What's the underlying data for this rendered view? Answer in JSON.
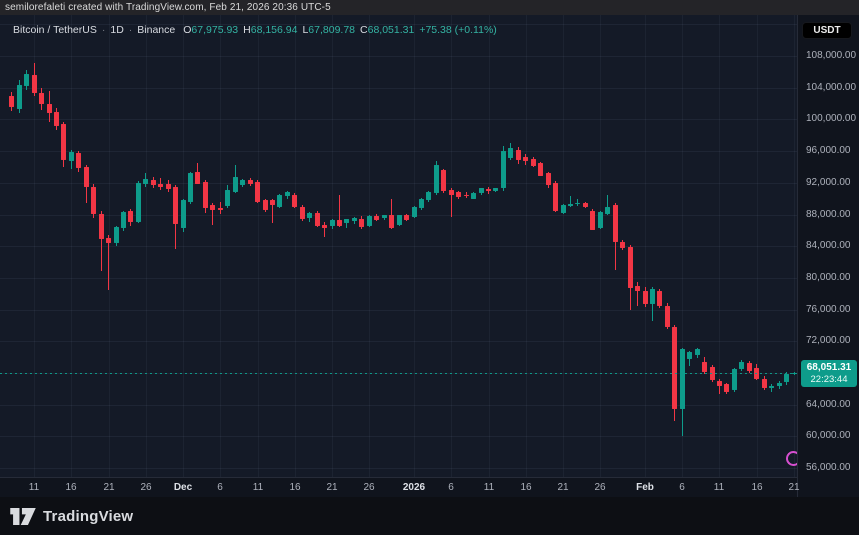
{
  "attribution": "semilorefaleti created with TradingView.com, Feb 21, 2026 20:36 UTC-5",
  "toolbar": {
    "currency_button": "USDT"
  },
  "legend": {
    "symbol": "Bitcoin / TetherUS",
    "separator": "·",
    "interval": "1D",
    "exchange": "Binance",
    "open_label": "O",
    "open": "67,975.93",
    "high_label": "H",
    "high": "68,156.94",
    "low_label": "L",
    "low": "67,809.78",
    "close_label": "C",
    "close": "68,051.31",
    "change": "+75.38 (+0.11%)"
  },
  "price_scale": {
    "current_price": "68,051.31",
    "countdown": "22:23:44",
    "labels": [
      {
        "label": "108,000.00",
        "price": 108000
      },
      {
        "label": "104,000.00",
        "price": 104000
      },
      {
        "label": "100,000.00",
        "price": 100000
      },
      {
        "label": "96,000.00",
        "price": 96000
      },
      {
        "label": "92,000.00",
        "price": 92000
      },
      {
        "label": "88,000.00",
        "price": 88000
      },
      {
        "label": "84,000.00",
        "price": 84000
      },
      {
        "label": "80,000.00",
        "price": 80000
      },
      {
        "label": "76,000.00",
        "price": 76000
      },
      {
        "label": "72,000.00",
        "price": 72000
      },
      {
        "label": "64,000.00",
        "price": 64000
      },
      {
        "label": "60,000.00",
        "price": 60000
      },
      {
        "label": "56,000.00",
        "price": 56000
      }
    ]
  },
  "time_scale": {
    "ticks": [
      {
        "label": "11",
        "n": 3,
        "major": false
      },
      {
        "label": "16",
        "n": 8,
        "major": false
      },
      {
        "label": "21",
        "n": 13,
        "major": false
      },
      {
        "label": "26",
        "n": 18,
        "major": false
      },
      {
        "label": "Dec",
        "n": 23,
        "major": true
      },
      {
        "label": "6",
        "n": 28,
        "major": false
      },
      {
        "label": "11",
        "n": 33,
        "major": false
      },
      {
        "label": "16",
        "n": 38,
        "major": false
      },
      {
        "label": "21",
        "n": 43,
        "major": false
      },
      {
        "label": "26",
        "n": 48,
        "major": false
      },
      {
        "label": "2026",
        "n": 54,
        "major": true
      },
      {
        "label": "6",
        "n": 59,
        "major": false
      },
      {
        "label": "11",
        "n": 64,
        "major": false
      },
      {
        "label": "16",
        "n": 69,
        "major": false
      },
      {
        "label": "21",
        "n": 74,
        "major": false
      },
      {
        "label": "26",
        "n": 79,
        "major": false
      },
      {
        "label": "Feb",
        "n": 85,
        "major": true
      },
      {
        "label": "6",
        "n": 90,
        "major": false
      },
      {
        "label": "11",
        "n": 95,
        "major": false
      },
      {
        "label": "16",
        "n": 100,
        "major": false
      },
      {
        "label": "21",
        "n": 105,
        "major": false
      }
    ]
  },
  "footer": {
    "brand": "TradingView"
  },
  "colors": {
    "up": "#0E9C8B",
    "down": "#F23645",
    "legend_value": "#34B3A3",
    "accent_pink": "#D64FD0"
  },
  "chart_data": {
    "type": "candlestick",
    "symbol": "Bitcoin / TetherUS (BTCUSDT)",
    "exchange": "Binance",
    "interval": "1D",
    "current_price": 68051.31,
    "change": 75.38,
    "change_pct": 0.11,
    "y_axis": {
      "min": 56000,
      "max": 112000,
      "grid_step": 4000,
      "label_currency": "USDT"
    },
    "x_axis": {
      "start": "2025-11-08",
      "end": "2026-02-21",
      "grid": "on"
    },
    "legend_position": "top-left",
    "candles": [
      [
        "2025-11-08",
        102900,
        103500,
        101000,
        101600
      ],
      [
        "2025-11-09",
        101300,
        105000,
        100800,
        104400
      ],
      [
        "2025-11-10",
        104200,
        106300,
        103700,
        105700
      ],
      [
        "2025-11-11",
        105600,
        107100,
        102900,
        103300
      ],
      [
        "2025-11-12",
        103300,
        104000,
        101200,
        101900
      ],
      [
        "2025-11-13",
        101900,
        103600,
        99700,
        100800
      ],
      [
        "2025-11-14",
        100900,
        101400,
        98700,
        99200
      ],
      [
        "2025-11-15",
        99400,
        99700,
        94000,
        94900
      ],
      [
        "2025-11-16",
        94700,
        96200,
        93800,
        95900
      ],
      [
        "2025-11-17",
        95800,
        96000,
        93400,
        93900
      ],
      [
        "2025-11-18",
        94000,
        94300,
        89400,
        91500
      ],
      [
        "2025-11-19",
        91500,
        91800,
        87600,
        88100
      ],
      [
        "2025-11-20",
        88100,
        88500,
        80900,
        84900
      ],
      [
        "2025-11-21",
        85000,
        85400,
        78500,
        84400
      ],
      [
        "2025-11-22",
        84400,
        86600,
        84000,
        86400
      ],
      [
        "2025-11-23",
        86300,
        88500,
        85900,
        88300
      ],
      [
        "2025-11-24",
        88400,
        88700,
        86600,
        87000
      ],
      [
        "2025-11-25",
        87100,
        92200,
        86900,
        92000
      ],
      [
        "2025-11-26",
        91900,
        93200,
        91500,
        92500
      ],
      [
        "2025-11-27",
        92400,
        92700,
        91300,
        91700
      ],
      [
        "2025-11-28",
        91900,
        92600,
        91100,
        91500
      ],
      [
        "2025-11-29",
        91900,
        92300,
        90800,
        91200
      ],
      [
        "2025-11-30",
        91500,
        91700,
        83700,
        86800
      ],
      [
        "2025-12-01",
        86300,
        90000,
        85800,
        89800
      ],
      [
        "2025-12-02",
        89600,
        93400,
        89300,
        93200
      ],
      [
        "2025-12-03",
        93400,
        94500,
        91800,
        91900
      ],
      [
        "2025-12-04",
        92100,
        92300,
        88200,
        88800
      ],
      [
        "2025-12-05",
        89200,
        89400,
        86700,
        88600
      ],
      [
        "2025-12-06",
        88800,
        89600,
        88000,
        88700
      ],
      [
        "2025-12-07",
        89000,
        91700,
        88800,
        91100
      ],
      [
        "2025-12-08",
        90900,
        94200,
        90700,
        92800
      ],
      [
        "2025-12-09",
        91700,
        92500,
        91500,
        92400
      ],
      [
        "2025-12-10",
        92400,
        92600,
        91600,
        91800
      ],
      [
        "2025-12-11",
        92100,
        92300,
        89500,
        89600
      ],
      [
        "2025-12-12",
        89800,
        90000,
        88300,
        88600
      ],
      [
        "2025-12-13",
        89800,
        90000,
        86900,
        89200
      ],
      [
        "2025-12-14",
        89000,
        90600,
        88800,
        90500
      ],
      [
        "2025-12-15",
        90300,
        91000,
        90000,
        90900
      ],
      [
        "2025-12-16",
        90500,
        90700,
        88800,
        89000
      ],
      [
        "2025-12-17",
        89000,
        89200,
        87200,
        87400
      ],
      [
        "2025-12-18",
        87600,
        88300,
        87100,
        88200
      ],
      [
        "2025-12-19",
        88200,
        88400,
        86400,
        86500
      ],
      [
        "2025-12-20",
        86700,
        87100,
        85200,
        86300
      ],
      [
        "2025-12-21",
        86500,
        87400,
        86200,
        87300
      ],
      [
        "2025-12-22",
        87300,
        90500,
        86400,
        86600
      ],
      [
        "2025-12-23",
        86900,
        87500,
        86300,
        87400
      ],
      [
        "2025-12-24",
        87200,
        87700,
        86800,
        87600
      ],
      [
        "2025-12-25",
        87400,
        87800,
        86200,
        86400
      ],
      [
        "2025-12-26",
        86600,
        87900,
        86400,
        87800
      ],
      [
        "2025-12-27",
        87800,
        88100,
        87200,
        87300
      ],
      [
        "2025-12-28",
        87600,
        88000,
        87300,
        87900
      ],
      [
        "2025-12-29",
        87900,
        90000,
        86200,
        86300
      ],
      [
        "2025-12-30",
        86700,
        88000,
        86500,
        87900
      ],
      [
        "2025-12-31",
        87900,
        88100,
        87200,
        87300
      ],
      [
        "2026-01-01",
        87700,
        89100,
        87500,
        89000
      ],
      [
        "2026-01-02",
        88800,
        90100,
        88600,
        90000
      ],
      [
        "2026-01-03",
        89800,
        91000,
        89600,
        90900
      ],
      [
        "2026-01-04",
        90700,
        94700,
        90500,
        94200
      ],
      [
        "2026-01-05",
        93600,
        93800,
        90700,
        90900
      ],
      [
        "2026-01-06",
        91100,
        91300,
        87700,
        90500
      ],
      [
        "2026-01-07",
        90900,
        91000,
        90000,
        90200
      ],
      [
        "2026-01-08",
        90500,
        90800,
        90100,
        90300
      ],
      [
        "2026-01-09",
        90000,
        90800,
        89900,
        90700
      ],
      [
        "2026-01-10",
        90700,
        91400,
        90500,
        91300
      ],
      [
        "2026-01-11",
        91200,
        91500,
        90600,
        91000
      ],
      [
        "2026-01-12",
        91000,
        91400,
        90800,
        91300
      ],
      [
        "2026-01-13",
        91300,
        96600,
        91000,
        96000
      ],
      [
        "2026-01-14",
        95100,
        97000,
        94900,
        96400
      ],
      [
        "2026-01-15",
        96100,
        96500,
        94400,
        94900
      ],
      [
        "2026-01-16",
        95200,
        95600,
        94300,
        94700
      ],
      [
        "2026-01-17",
        95000,
        95200,
        94000,
        94100
      ],
      [
        "2026-01-18",
        94500,
        94600,
        92800,
        92900
      ],
      [
        "2026-01-19",
        93200,
        93400,
        91300,
        91700
      ],
      [
        "2026-01-20",
        92000,
        92200,
        88300,
        88400
      ],
      [
        "2026-01-21",
        88200,
        89300,
        88000,
        89200
      ],
      [
        "2026-01-22",
        89200,
        90400,
        89000,
        89300
      ],
      [
        "2026-01-23",
        89400,
        90000,
        89100,
        89500
      ],
      [
        "2026-01-24",
        89400,
        89600,
        88800,
        88900
      ],
      [
        "2026-01-25",
        88500,
        88700,
        86000,
        86100
      ],
      [
        "2026-01-26",
        86300,
        88400,
        86100,
        88300
      ],
      [
        "2026-01-27",
        88100,
        90500,
        87900,
        88900
      ],
      [
        "2026-01-28",
        89200,
        89400,
        81000,
        84500
      ],
      [
        "2026-01-29",
        84500,
        84800,
        83500,
        83700
      ],
      [
        "2026-01-30",
        83900,
        84100,
        75900,
        78700
      ],
      [
        "2026-01-31",
        79000,
        79500,
        76500,
        78400
      ],
      [
        "2026-02-01",
        78300,
        78900,
        76300,
        76700
      ],
      [
        "2026-02-02",
        76700,
        78900,
        74500,
        78600
      ],
      [
        "2026-02-03",
        78300,
        78600,
        76200,
        76400
      ],
      [
        "2026-02-04",
        76500,
        76800,
        73600,
        73800
      ],
      [
        "2026-02-05",
        73800,
        74100,
        62000,
        63400
      ],
      [
        "2026-02-06",
        63400,
        71200,
        60000,
        71000
      ],
      [
        "2026-02-07",
        69700,
        70800,
        68900,
        70600
      ],
      [
        "2026-02-08",
        70200,
        71200,
        69900,
        71000
      ],
      [
        "2026-02-09",
        69400,
        70000,
        67900,
        68100
      ],
      [
        "2026-02-10",
        68800,
        69000,
        66800,
        67100
      ],
      [
        "2026-02-11",
        67000,
        67300,
        65400,
        66400
      ],
      [
        "2026-02-12",
        66600,
        66800,
        65300,
        65600
      ],
      [
        "2026-02-13",
        65800,
        68600,
        65600,
        68500
      ],
      [
        "2026-02-14",
        68500,
        69600,
        68300,
        69400
      ],
      [
        "2026-02-15",
        69300,
        69500,
        68000,
        68200
      ],
      [
        "2026-02-16",
        68700,
        69100,
        67100,
        67300
      ],
      [
        "2026-02-17",
        67300,
        67600,
        65800,
        66100
      ],
      [
        "2026-02-18",
        66100,
        66600,
        65600,
        66400
      ],
      [
        "2026-02-19",
        66400,
        67000,
        66000,
        66800
      ],
      [
        "2026-02-20",
        66800,
        68100,
        66500,
        67900
      ],
      [
        "2026-02-21",
        67975.93,
        68156.94,
        67809.78,
        68051.31
      ]
    ]
  }
}
